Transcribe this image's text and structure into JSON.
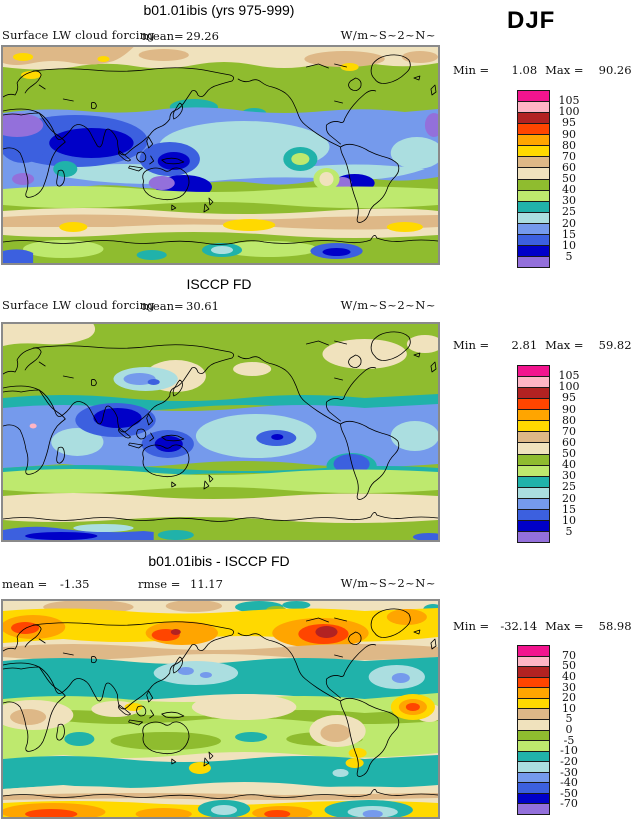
{
  "page": {
    "season_label": "DJF",
    "background": "#FFFFFF"
  },
  "shared": {
    "colorbar_colors": [
      "#F2148E",
      "#FFB5C5",
      "#B22222",
      "#FF4500",
      "#FFA500",
      "#FFD900",
      "#DEB887",
      "#F0E2BD",
      "#8FBC2F",
      "#BEE96E",
      "#20B2AA",
      "#ABDEE0",
      "#759AEC",
      "#3C60DF",
      "#0000C8",
      "#9370DB"
    ]
  },
  "panels": [
    {
      "title": "b01.01ibis (yrs 975-999)",
      "variable": "Surface LW cloud forcing",
      "mean_label": "mean=",
      "mean_value": "29.26",
      "units": "W/m~S~2~N~",
      "min_label": "Min =",
      "min_value": "1.08",
      "max_label": "Max =",
      "max_value": "90.26",
      "colorbar_labels": [
        "105",
        "100",
        "95",
        "90",
        "80",
        "70",
        "60",
        "50",
        "40",
        "30",
        "25",
        "20",
        "15",
        "10",
        "5"
      ]
    },
    {
      "title": "ISCCP FD",
      "variable": "Surface LW cloud forcing",
      "mean_label": "mean=",
      "mean_value": "30.61",
      "units": "W/m~S~2~N~",
      "min_label": "Min =",
      "min_value": "2.81",
      "max_label": "Max =",
      "max_value": "59.82",
      "colorbar_labels": [
        "105",
        "100",
        "95",
        "90",
        "80",
        "70",
        "60",
        "50",
        "40",
        "30",
        "25",
        "20",
        "15",
        "10",
        "5"
      ]
    },
    {
      "title": "b01.01ibis - ISCCP FD",
      "mean_label": "mean =",
      "mean_value": "-1.35",
      "rmse_label": "rmse =",
      "rmse_value": "11.17",
      "units": "W/m~S~2~N~",
      "min_label": "Min =",
      "min_value": "-32.14",
      "max_label": "Max =",
      "max_value": "58.98",
      "colorbar_labels": [
        "70",
        "50",
        "40",
        "30",
        "20",
        "10",
        "5",
        "0",
        "-5",
        "-10",
        "-20",
        "-30",
        "-40",
        "-50",
        "-70"
      ]
    }
  ],
  "chart_data": [
    {
      "type": "heatmap",
      "subtype": "global-filled-contour-map",
      "title": "b01.01ibis (yrs 975-999)",
      "variable": "Surface LW cloud forcing",
      "season": "DJF",
      "units": "W/m~S~2~N~ (W/m2)",
      "stats": {
        "mean": 29.26,
        "min": 1.08,
        "max": 90.26
      },
      "contour_levels": [
        5,
        10,
        15,
        20,
        25,
        30,
        40,
        50,
        60,
        70,
        80,
        90,
        95,
        100,
        105
      ],
      "palette_top_to_bottom": [
        "#F2148E",
        "#FFB5C5",
        "#B22222",
        "#FF4500",
        "#FFA500",
        "#FFD900",
        "#DEB887",
        "#F0E2BD",
        "#8FBC2F",
        "#BEE96E",
        "#20B2AA",
        "#ABDEE0",
        "#759AEC",
        "#3C60DF",
        "#0000C8",
        "#9370DB"
      ],
      "legend_position": "right",
      "notes": "Low values (blue/purple, 5-20) over subtropical oceans, N Africa and Australia; high values (tan/yellow, 50-80) along midlatitude storm tracks and polar bands"
    },
    {
      "type": "heatmap",
      "subtype": "global-filled-contour-map",
      "title": "ISCCP FD",
      "variable": "Surface LW cloud forcing",
      "season": "DJF",
      "units": "W/m~S~2~N~ (W/m2)",
      "stats": {
        "mean": 30.61,
        "min": 2.81,
        "max": 59.82
      },
      "contour_levels": [
        5,
        10,
        15,
        20,
        25,
        30,
        40,
        50,
        60,
        70,
        80,
        90,
        95,
        100,
        105
      ],
      "palette_top_to_bottom": [
        "#F2148E",
        "#FFB5C5",
        "#B22222",
        "#FF4500",
        "#FFA500",
        "#FFD900",
        "#DEB887",
        "#F0E2BD",
        "#8FBC2F",
        "#BEE96E",
        "#20B2AA",
        "#ABDEE0",
        "#759AEC",
        "#3C60DF",
        "#0000C8",
        "#9370DB"
      ],
      "legend_position": "right",
      "notes": "Mostly 30-50 (green) globally; 10-25 (blue) bands across tropical/subtropical oceans; 50-60 (beige) over Arctic and Southern Ocean band"
    },
    {
      "type": "heatmap",
      "subtype": "global-filled-contour-difference-map",
      "title": "b01.01ibis - ISCCP FD",
      "season": "DJF",
      "units": "W/m~S~2~N~ (W/m2)",
      "stats": {
        "mean": -1.35,
        "rmse": 11.17,
        "min": -32.14,
        "max": 58.98
      },
      "contour_levels": [
        -70,
        -50,
        -40,
        -30,
        -20,
        -10,
        -5,
        0,
        5,
        10,
        20,
        30,
        40,
        50,
        70
      ],
      "palette_top_to_bottom": [
        "#F2148E",
        "#FFB5C5",
        "#B22222",
        "#FF4500",
        "#FFA500",
        "#FFD900",
        "#DEB887",
        "#F0E2BD",
        "#8FBC2F",
        "#BEE96E",
        "#20B2AA",
        "#ABDEE0",
        "#759AEC",
        "#3C60DF",
        "#0000C8",
        "#9370DB"
      ],
      "legend_position": "right",
      "notes": "Positive differences (yellow/orange/red, +10 to +50) at high northern latitudes (Canada, Scandinavia, Alaska) and around Antarctica; negative (teal, -10 to -30) in midlatitude ocean bands"
    }
  ]
}
